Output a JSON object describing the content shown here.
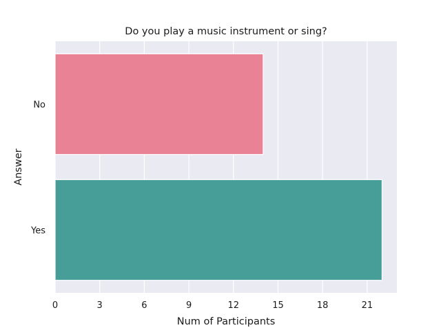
{
  "chart_data": {
    "type": "bar",
    "orientation": "horizontal",
    "title": "Do you play a music instrument or sing?",
    "xlabel": "Num of Participants",
    "ylabel": "Answer",
    "categories": [
      "No",
      "Yes"
    ],
    "values": [
      14,
      22
    ],
    "colors": [
      "#e88294",
      "#479e99"
    ],
    "xlim": [
      0,
      23
    ],
    "xticks": [
      "0",
      "3",
      "6",
      "9",
      "12",
      "15",
      "18",
      "21"
    ],
    "grid": true,
    "background": "#eaeaf2"
  }
}
